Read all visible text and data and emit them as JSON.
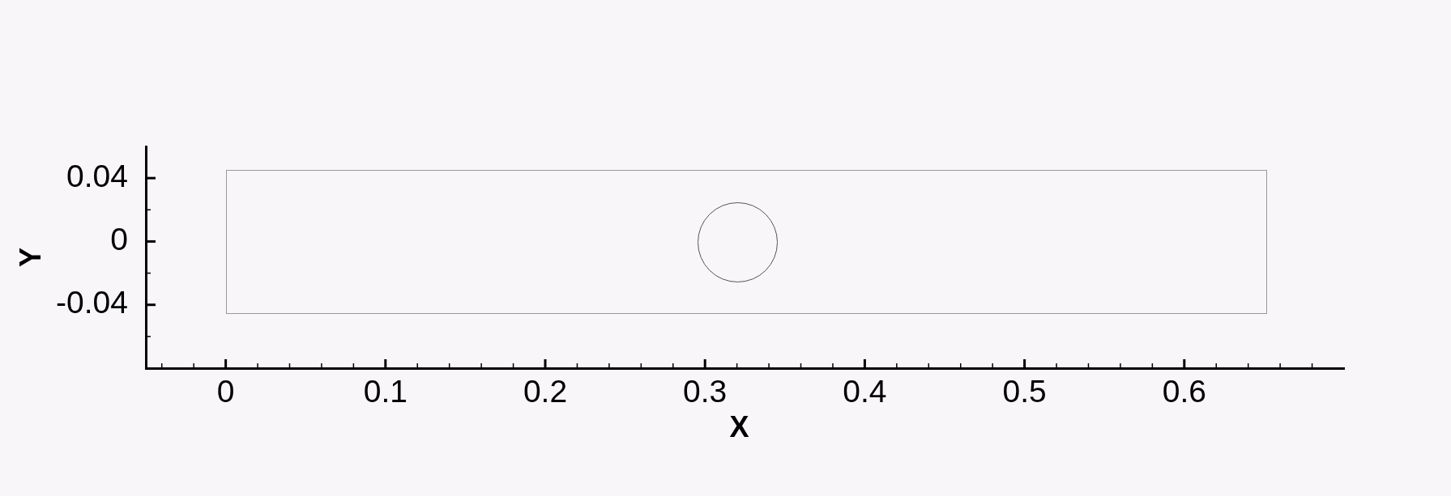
{
  "chart_data": {
    "type": "line",
    "xlabel": "X",
    "ylabel": "Y",
    "grid": false,
    "legend": false,
    "xlim": [
      -0.05,
      0.7
    ],
    "ylim": [
      -0.08,
      0.06
    ],
    "xticks": [
      {
        "value": -0.04,
        "label": null
      },
      {
        "value": -0.02,
        "label": null
      },
      0,
      {
        "value": 0.02,
        "label": null
      },
      {
        "value": 0.04,
        "label": null
      },
      {
        "value": 0.06,
        "label": null
      },
      {
        "value": 0.08,
        "label": null
      },
      0.1,
      {
        "value": 0.12,
        "label": null
      },
      {
        "value": 0.14,
        "label": null
      },
      {
        "value": 0.16,
        "label": null
      },
      {
        "value": 0.18,
        "label": null
      },
      0.2,
      {
        "value": 0.22,
        "label": null
      },
      {
        "value": 0.24,
        "label": null
      },
      {
        "value": 0.26,
        "label": null
      },
      {
        "value": 0.28,
        "label": null
      },
      0.3,
      {
        "value": 0.32,
        "label": null
      },
      {
        "value": 0.34,
        "label": null
      },
      {
        "value": 0.36,
        "label": null
      },
      {
        "value": 0.38,
        "label": null
      },
      0.4,
      {
        "value": 0.42,
        "label": null
      },
      {
        "value": 0.44,
        "label": null
      },
      {
        "value": 0.46,
        "label": null
      },
      {
        "value": 0.48,
        "label": null
      },
      0.5,
      {
        "value": 0.52,
        "label": null
      },
      {
        "value": 0.54,
        "label": null
      },
      {
        "value": 0.56,
        "label": null
      },
      {
        "value": 0.58,
        "label": null
      },
      0.6,
      {
        "value": 0.62,
        "label": null
      },
      {
        "value": 0.64,
        "label": null
      },
      {
        "value": 0.66,
        "label": null
      },
      {
        "value": 0.68,
        "label": null
      }
    ],
    "yticks": [
      {
        "value": -0.06,
        "label": null
      },
      -0.04,
      {
        "value": -0.02,
        "label": null
      },
      0,
      {
        "value": 0.02,
        "label": null
      },
      0.04
    ]
  }
}
